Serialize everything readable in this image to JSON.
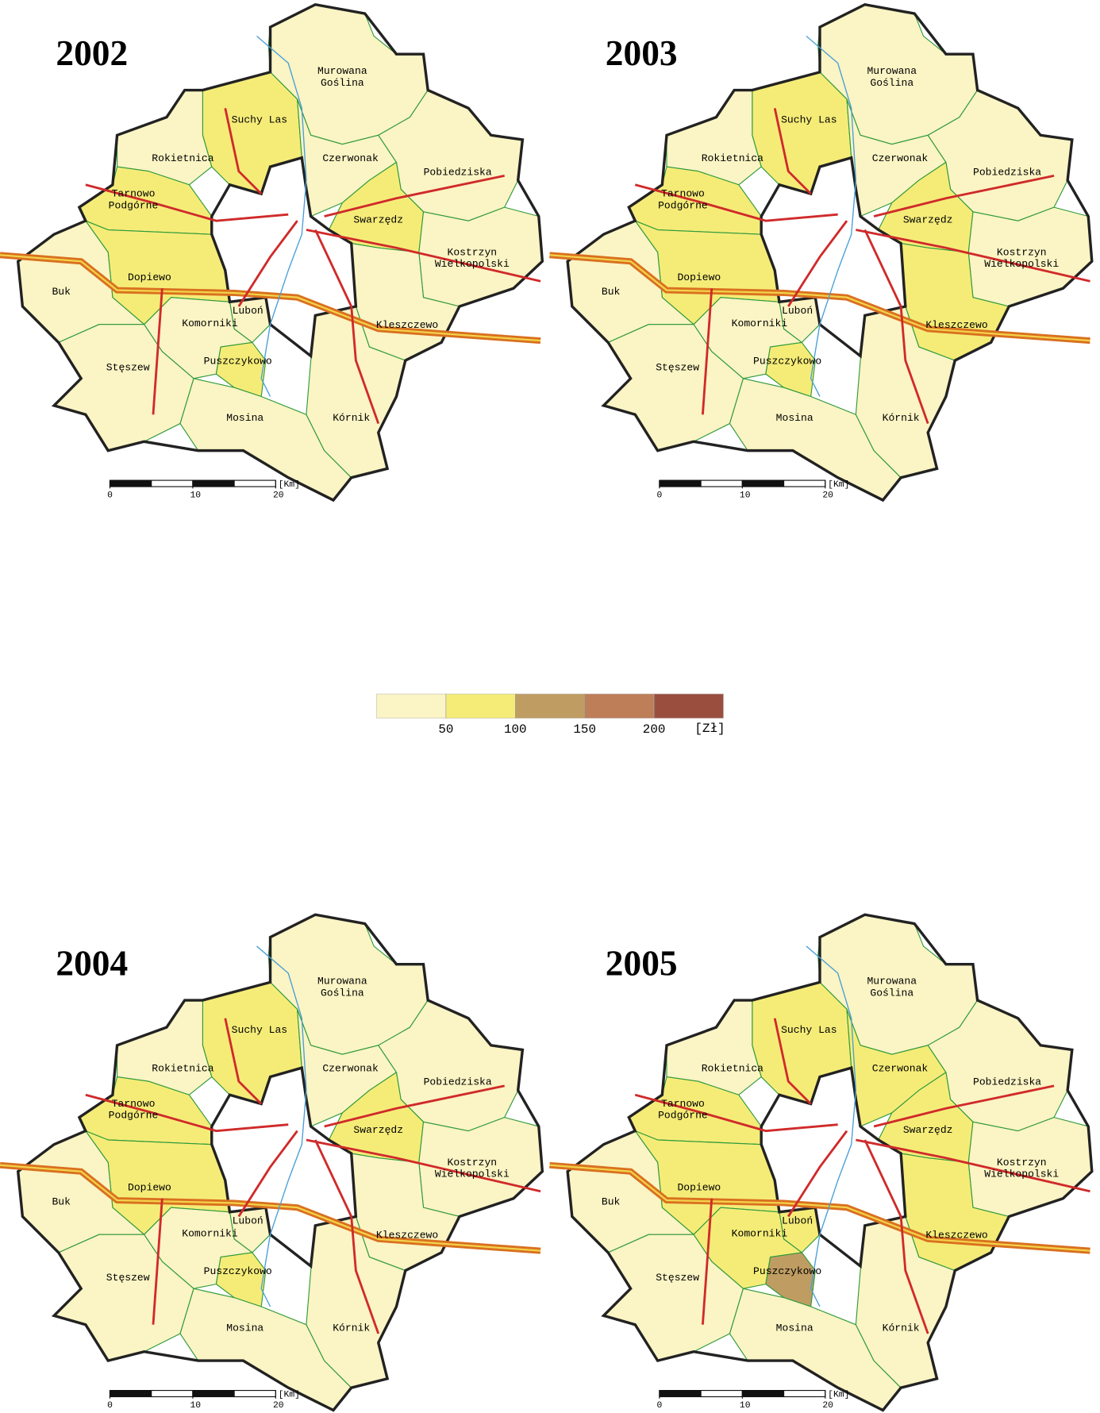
{
  "maps": [
    {
      "year": "2002",
      "classes": [
        0,
        1,
        0,
        0,
        0,
        1,
        1,
        0,
        1,
        0,
        0,
        0,
        0,
        0,
        1,
        0,
        0
      ]
    },
    {
      "year": "2003",
      "classes": [
        0,
        1,
        0,
        0,
        0,
        1,
        1,
        0,
        1,
        0,
        0,
        0,
        1,
        0,
        1,
        0,
        0
      ]
    },
    {
      "year": "2004",
      "classes": [
        0,
        1,
        0,
        0,
        0,
        1,
        1,
        0,
        1,
        0,
        0,
        0,
        0,
        0,
        1,
        0,
        0
      ]
    },
    {
      "year": "2005",
      "classes": [
        0,
        1,
        0,
        1,
        0,
        1,
        1,
        0,
        1,
        0,
        1,
        1,
        1,
        0,
        2,
        0,
        0
      ]
    }
  ],
  "municipalities": [
    [
      "Murowana",
      "Goślina"
    ],
    [
      "Suchy Las"
    ],
    [
      "Rokietnica"
    ],
    [
      "Czerwonak"
    ],
    [
      "Pobiedziska"
    ],
    [
      "Tarnowo",
      "Podgórne"
    ],
    [
      "Swarzędz"
    ],
    [
      "Kostrzyn",
      "Wielkopolski"
    ],
    [
      "Dopiewo"
    ],
    [
      "Buk"
    ],
    [
      "Luboń"
    ],
    [
      "Komorniki"
    ],
    [
      "Kleszczewo"
    ],
    [
      "Stęszew"
    ],
    [
      "Puszczykowo"
    ],
    [
      "Mosina"
    ],
    [
      "Kórnik"
    ]
  ],
  "scale_bar": {
    "ticks": [
      0,
      10,
      20
    ],
    "unit": "[Km]"
  },
  "legend": {
    "colors": [
      "#fbf4c4",
      "#f5ec78",
      "#bf9d62",
      "#bd7e58",
      "#9a4f3e"
    ],
    "ticks": [
      50,
      100,
      150,
      200
    ],
    "unit": "[Zł]"
  }
}
